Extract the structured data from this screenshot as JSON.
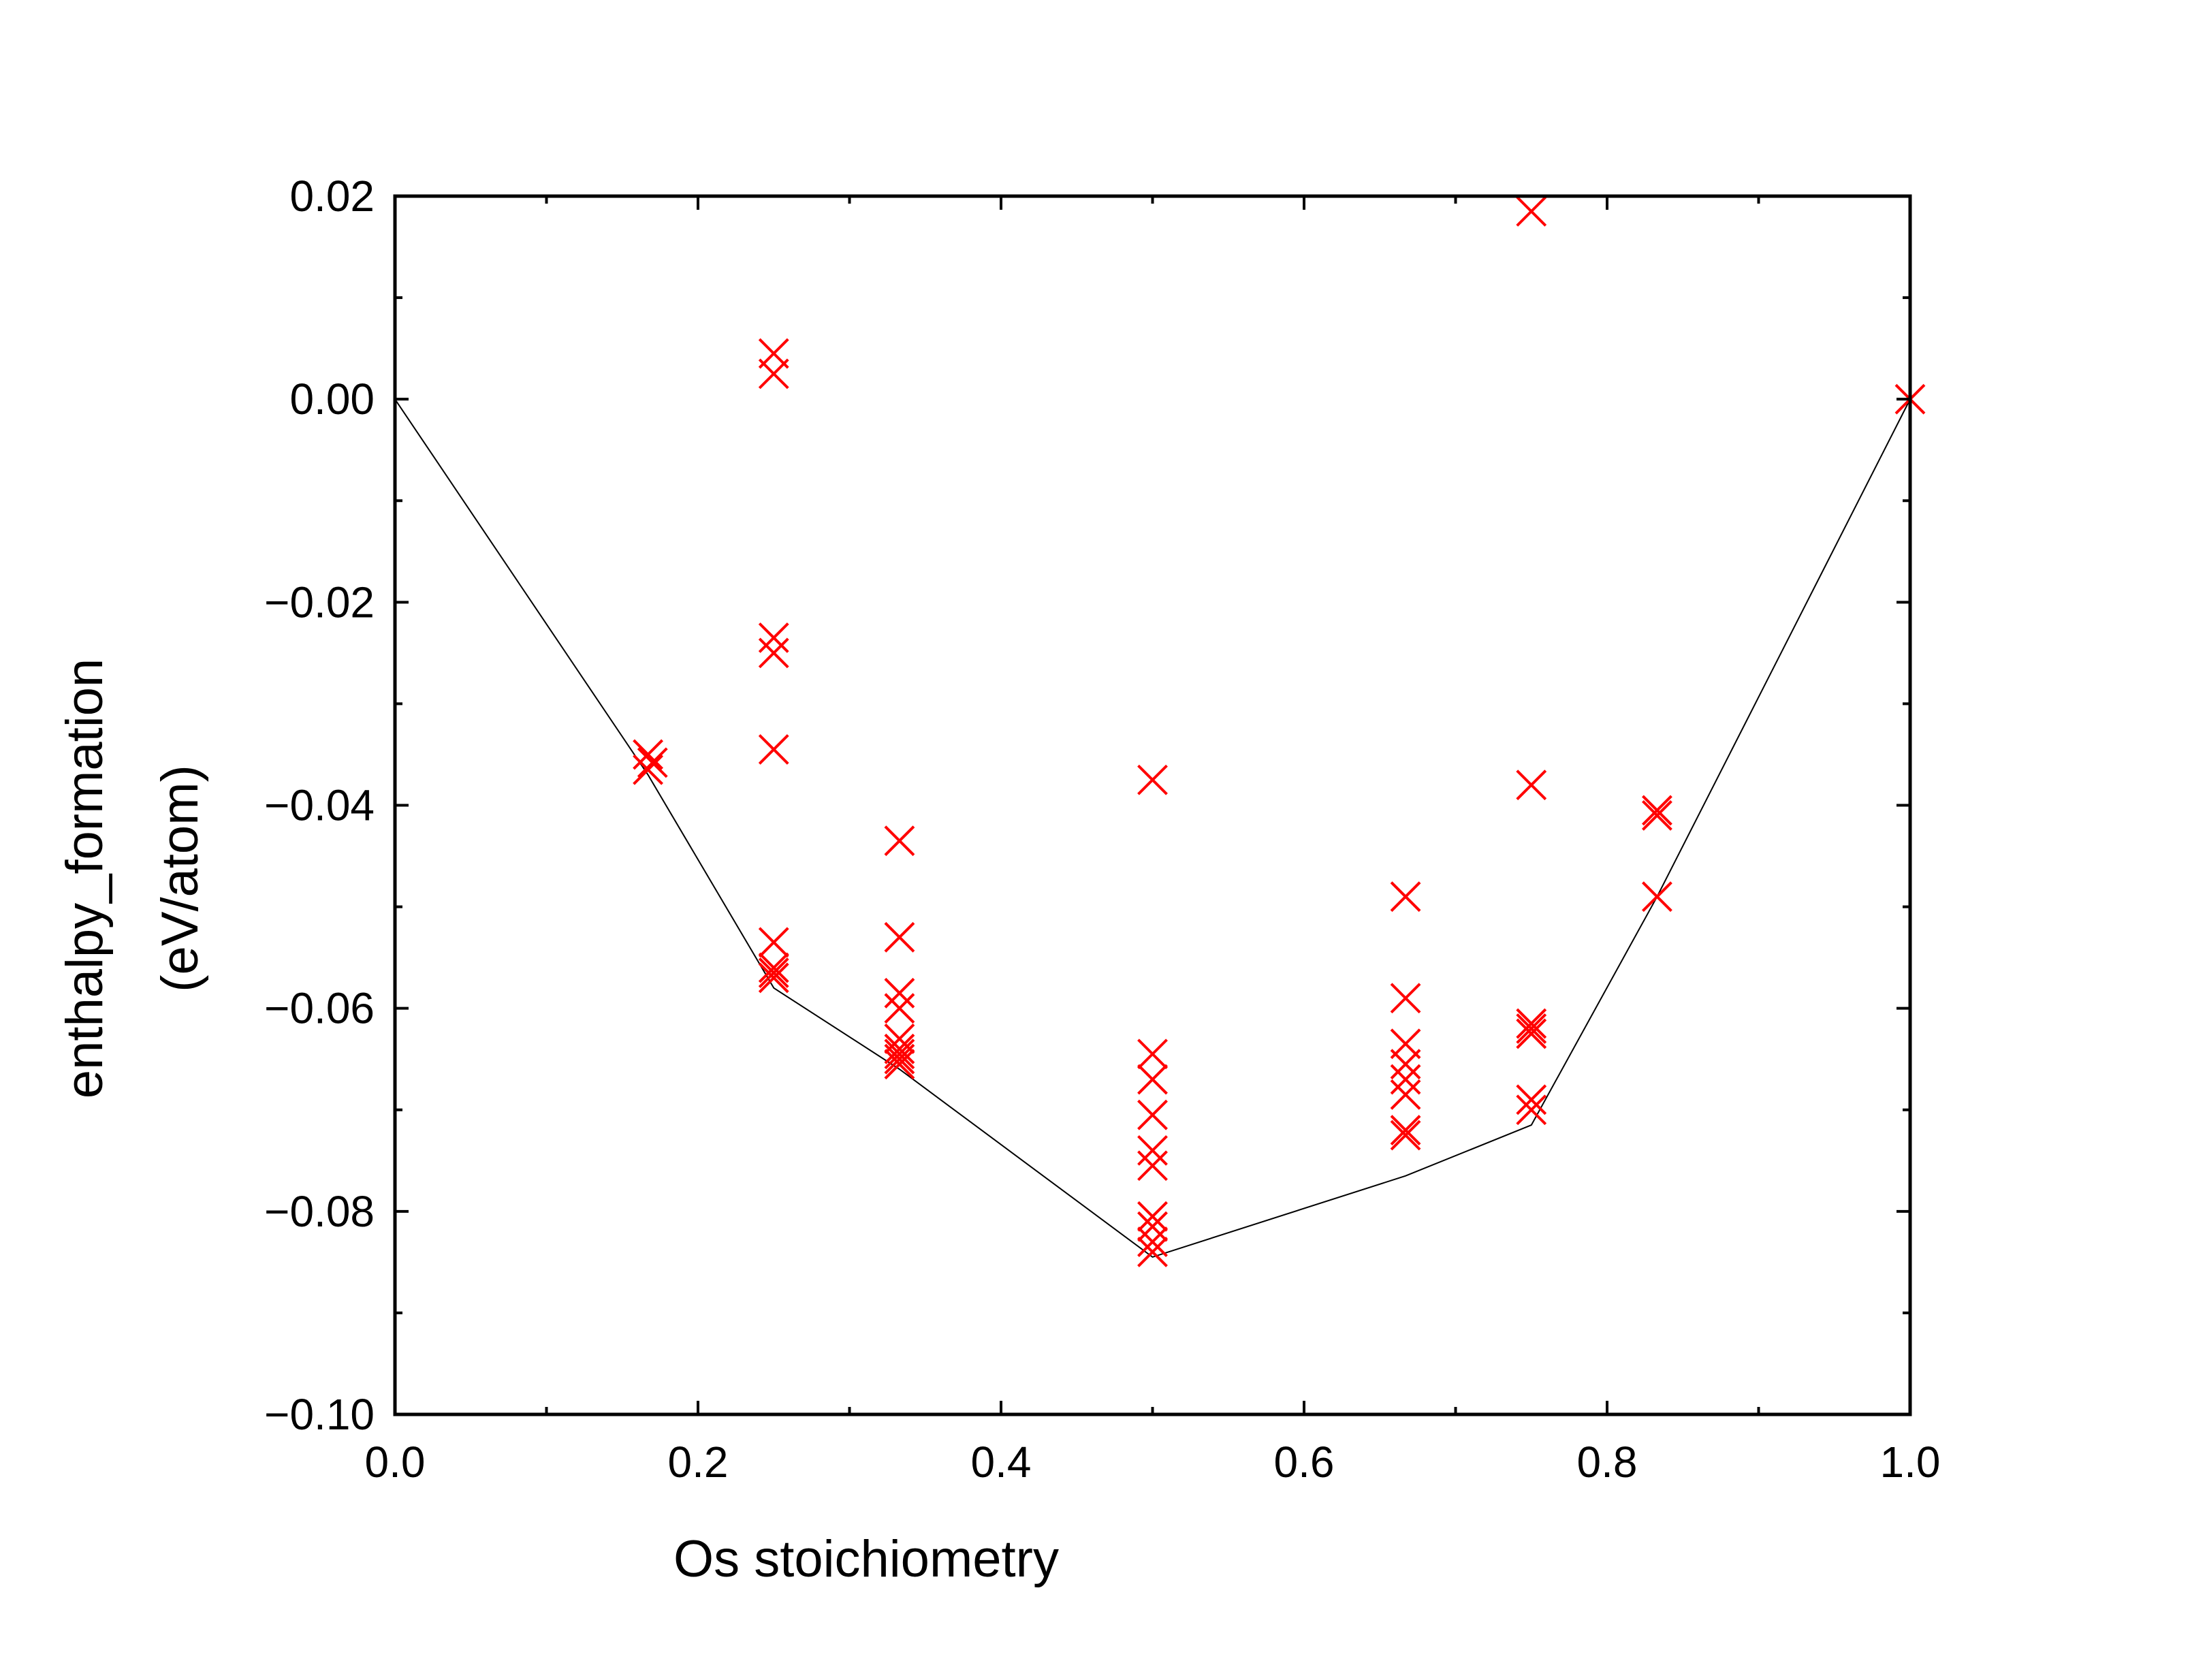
{
  "chart_data": {
    "type": "scatter",
    "title": "",
    "xlabel": "Os stoichiometry",
    "ylabel_lines": [
      "enthalpy_formation",
      "(eV/atom)"
    ],
    "xlim": [
      0.0,
      1.0
    ],
    "ylim": [
      -0.1,
      0.02
    ],
    "x_ticks": [
      0.0,
      0.2,
      0.4,
      0.6,
      0.8,
      1.0
    ],
    "x_tick_labels": [
      "0.0",
      "0.2",
      "0.4",
      "0.6",
      "0.8",
      "1.0"
    ],
    "y_ticks": [
      0.02,
      0.0,
      -0.02,
      -0.04,
      -0.06,
      -0.08,
      -0.1
    ],
    "y_tick_labels": [
      "0.02",
      "0.00",
      "−0.02",
      "−0.04",
      "−0.06",
      "−0.08",
      "−0.10"
    ],
    "x_minor_step": 0.1,
    "y_minor_step": 0.01,
    "grid": false,
    "legend": "none",
    "series": [
      {
        "type": "scatter",
        "marker": "x",
        "color": "#ff0000",
        "points": [
          [
            0.167,
            -0.035
          ],
          [
            0.167,
            -0.0365
          ],
          [
            0.17,
            -0.0358
          ],
          [
            0.25,
            0.0045
          ],
          [
            0.25,
            0.0025
          ],
          [
            0.25,
            -0.0235
          ],
          [
            0.25,
            -0.025
          ],
          [
            0.25,
            -0.0345
          ],
          [
            0.25,
            -0.0535
          ],
          [
            0.25,
            -0.056
          ],
          [
            0.25,
            -0.0565
          ],
          [
            0.25,
            -0.057
          ],
          [
            0.333,
            -0.0435
          ],
          [
            0.333,
            -0.053
          ],
          [
            0.333,
            -0.0585
          ],
          [
            0.333,
            -0.06
          ],
          [
            0.333,
            -0.063
          ],
          [
            0.333,
            -0.064
          ],
          [
            0.333,
            -0.0645
          ],
          [
            0.333,
            -0.065
          ],
          [
            0.333,
            -0.0655
          ],
          [
            0.5,
            -0.0375
          ],
          [
            0.5,
            -0.0645
          ],
          [
            0.5,
            -0.067
          ],
          [
            0.5,
            -0.0705
          ],
          [
            0.5,
            -0.074
          ],
          [
            0.5,
            -0.0755
          ],
          [
            0.5,
            -0.0805
          ],
          [
            0.5,
            -0.0815
          ],
          [
            0.5,
            -0.083
          ],
          [
            0.5,
            -0.084
          ],
          [
            0.667,
            -0.049
          ],
          [
            0.667,
            -0.059
          ],
          [
            0.667,
            -0.0635
          ],
          [
            0.667,
            -0.0655
          ],
          [
            0.667,
            -0.067
          ],
          [
            0.667,
            -0.0685
          ],
          [
            0.667,
            -0.072
          ],
          [
            0.667,
            -0.0725
          ],
          [
            0.75,
            0.0185
          ],
          [
            0.75,
            -0.038
          ],
          [
            0.75,
            -0.0615
          ],
          [
            0.75,
            -0.062
          ],
          [
            0.75,
            -0.0625
          ],
          [
            0.75,
            -0.069
          ],
          [
            0.75,
            -0.07
          ],
          [
            0.833,
            -0.0405
          ],
          [
            0.833,
            -0.041
          ],
          [
            0.833,
            -0.049
          ],
          [
            1.0,
            0.0
          ]
        ]
      },
      {
        "type": "line",
        "name": "",
        "color": "#000000",
        "x": [
          0.0,
          0.167,
          0.25,
          0.333,
          0.5,
          0.667,
          0.75,
          0.833,
          1.0
        ],
        "y": [
          0.0,
          -0.037,
          -0.058,
          -0.066,
          -0.0845,
          -0.0765,
          -0.0715,
          -0.049,
          0.0
        ]
      }
    ]
  }
}
